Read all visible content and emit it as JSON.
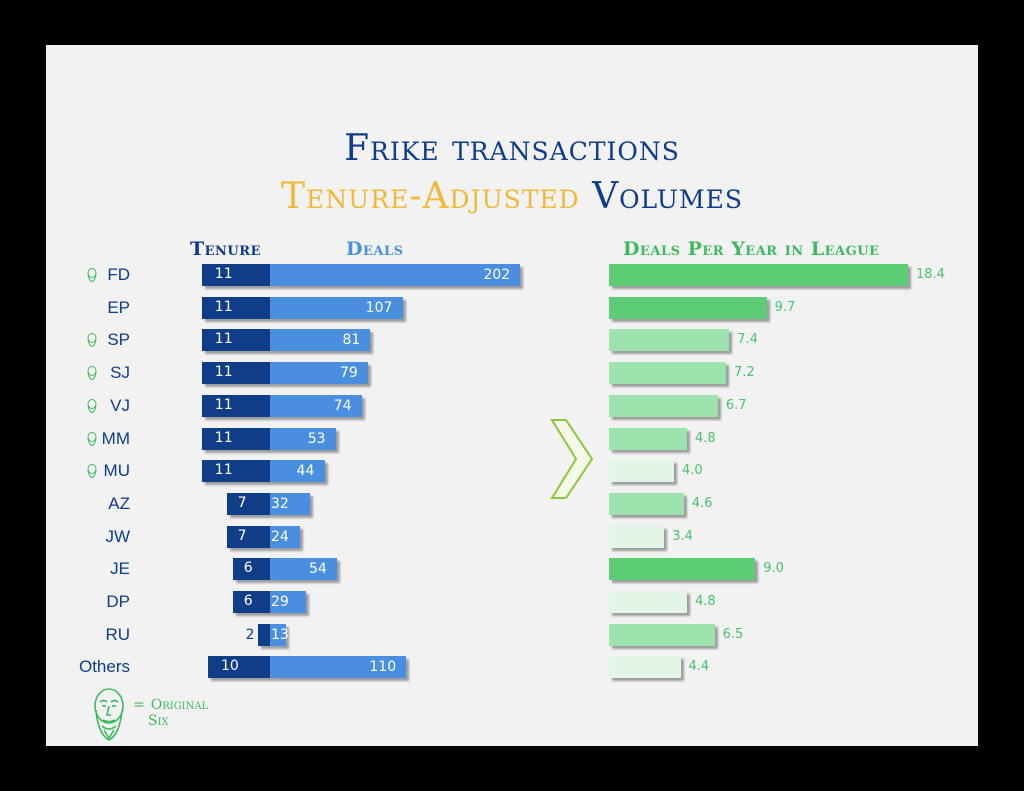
{
  "title_line1": "Frike transactions",
  "title_line2_highlight": "Tenure-Adjusted",
  "title_line2_rest": "Volumes",
  "headers": {
    "tenure": "Tenure",
    "deals": "Deals",
    "dpy": "Deals Per Year in League"
  },
  "legend": {
    "equals": "=",
    "line1": "Original",
    "line2": "Six",
    "icon": "bearded-face-icon"
  },
  "colors": {
    "navy": "#0f3d87",
    "blue": "#4a8ee0",
    "green_dark": "#5ccd75",
    "green_mid": "#9de3ad",
    "green_light": "#e2f5e6",
    "gold": "#f0b93a"
  },
  "chart_data": {
    "type": "bar",
    "categories": [
      "FD",
      "EP",
      "SP",
      "SJ",
      "VJ",
      "MM",
      "MU",
      "AZ",
      "JW",
      "JE",
      "DP",
      "RU",
      "Others"
    ],
    "original_six": [
      true,
      false,
      true,
      true,
      true,
      true,
      true,
      false,
      false,
      false,
      false,
      false,
      false
    ],
    "series": [
      {
        "name": "Tenure",
        "values": [
          11,
          11,
          11,
          11,
          11,
          11,
          11,
          7,
          7,
          6,
          6,
          2,
          10
        ]
      },
      {
        "name": "Deals",
        "values": [
          202,
          107,
          81,
          79,
          74,
          53,
          44,
          32,
          24,
          54,
          29,
          13,
          110
        ]
      },
      {
        "name": "Deals Per Year in League",
        "values": [
          "18.4",
          "9.7",
          "7.4",
          "7.2",
          "6.7",
          "4.8",
          "4.0",
          "4.6",
          "3.4",
          "9.0",
          "4.8",
          "6.5",
          "4.4"
        ],
        "shade": [
          "dark",
          "dark",
          "mid",
          "mid",
          "mid",
          "mid",
          "light",
          "mid",
          "light",
          "dark",
          "light",
          "mid",
          "light"
        ]
      }
    ]
  }
}
